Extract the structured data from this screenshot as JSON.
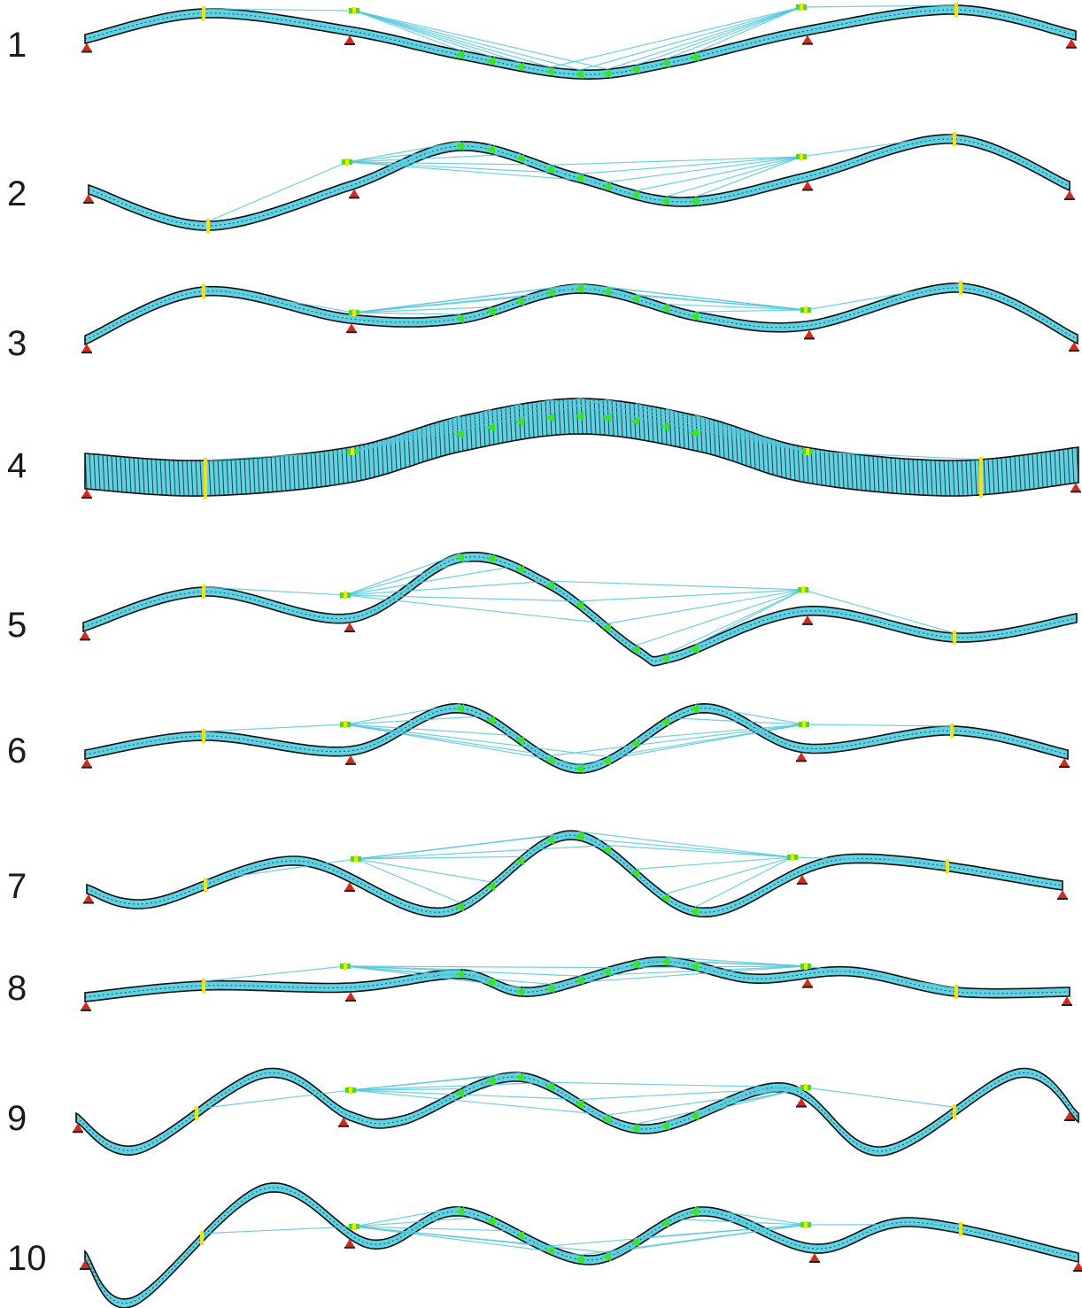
{
  "figure": {
    "colors": {
      "background": "#ffffff",
      "deck_outline": "#111111",
      "deck_fill": "#5fd3e3",
      "cable": "#55c8dc",
      "cable_anchor": "#39e61a",
      "tower_marker": "#ffe000",
      "support": "#d42a1a",
      "label": "#1a1a1a"
    },
    "modes": [
      {
        "label": "1"
      },
      {
        "label": "2"
      },
      {
        "label": "3"
      },
      {
        "label": "4"
      },
      {
        "label": "5"
      },
      {
        "label": "6"
      },
      {
        "label": "7"
      },
      {
        "label": "8"
      },
      {
        "label": "9"
      },
      {
        "label": "10"
      }
    ]
  }
}
